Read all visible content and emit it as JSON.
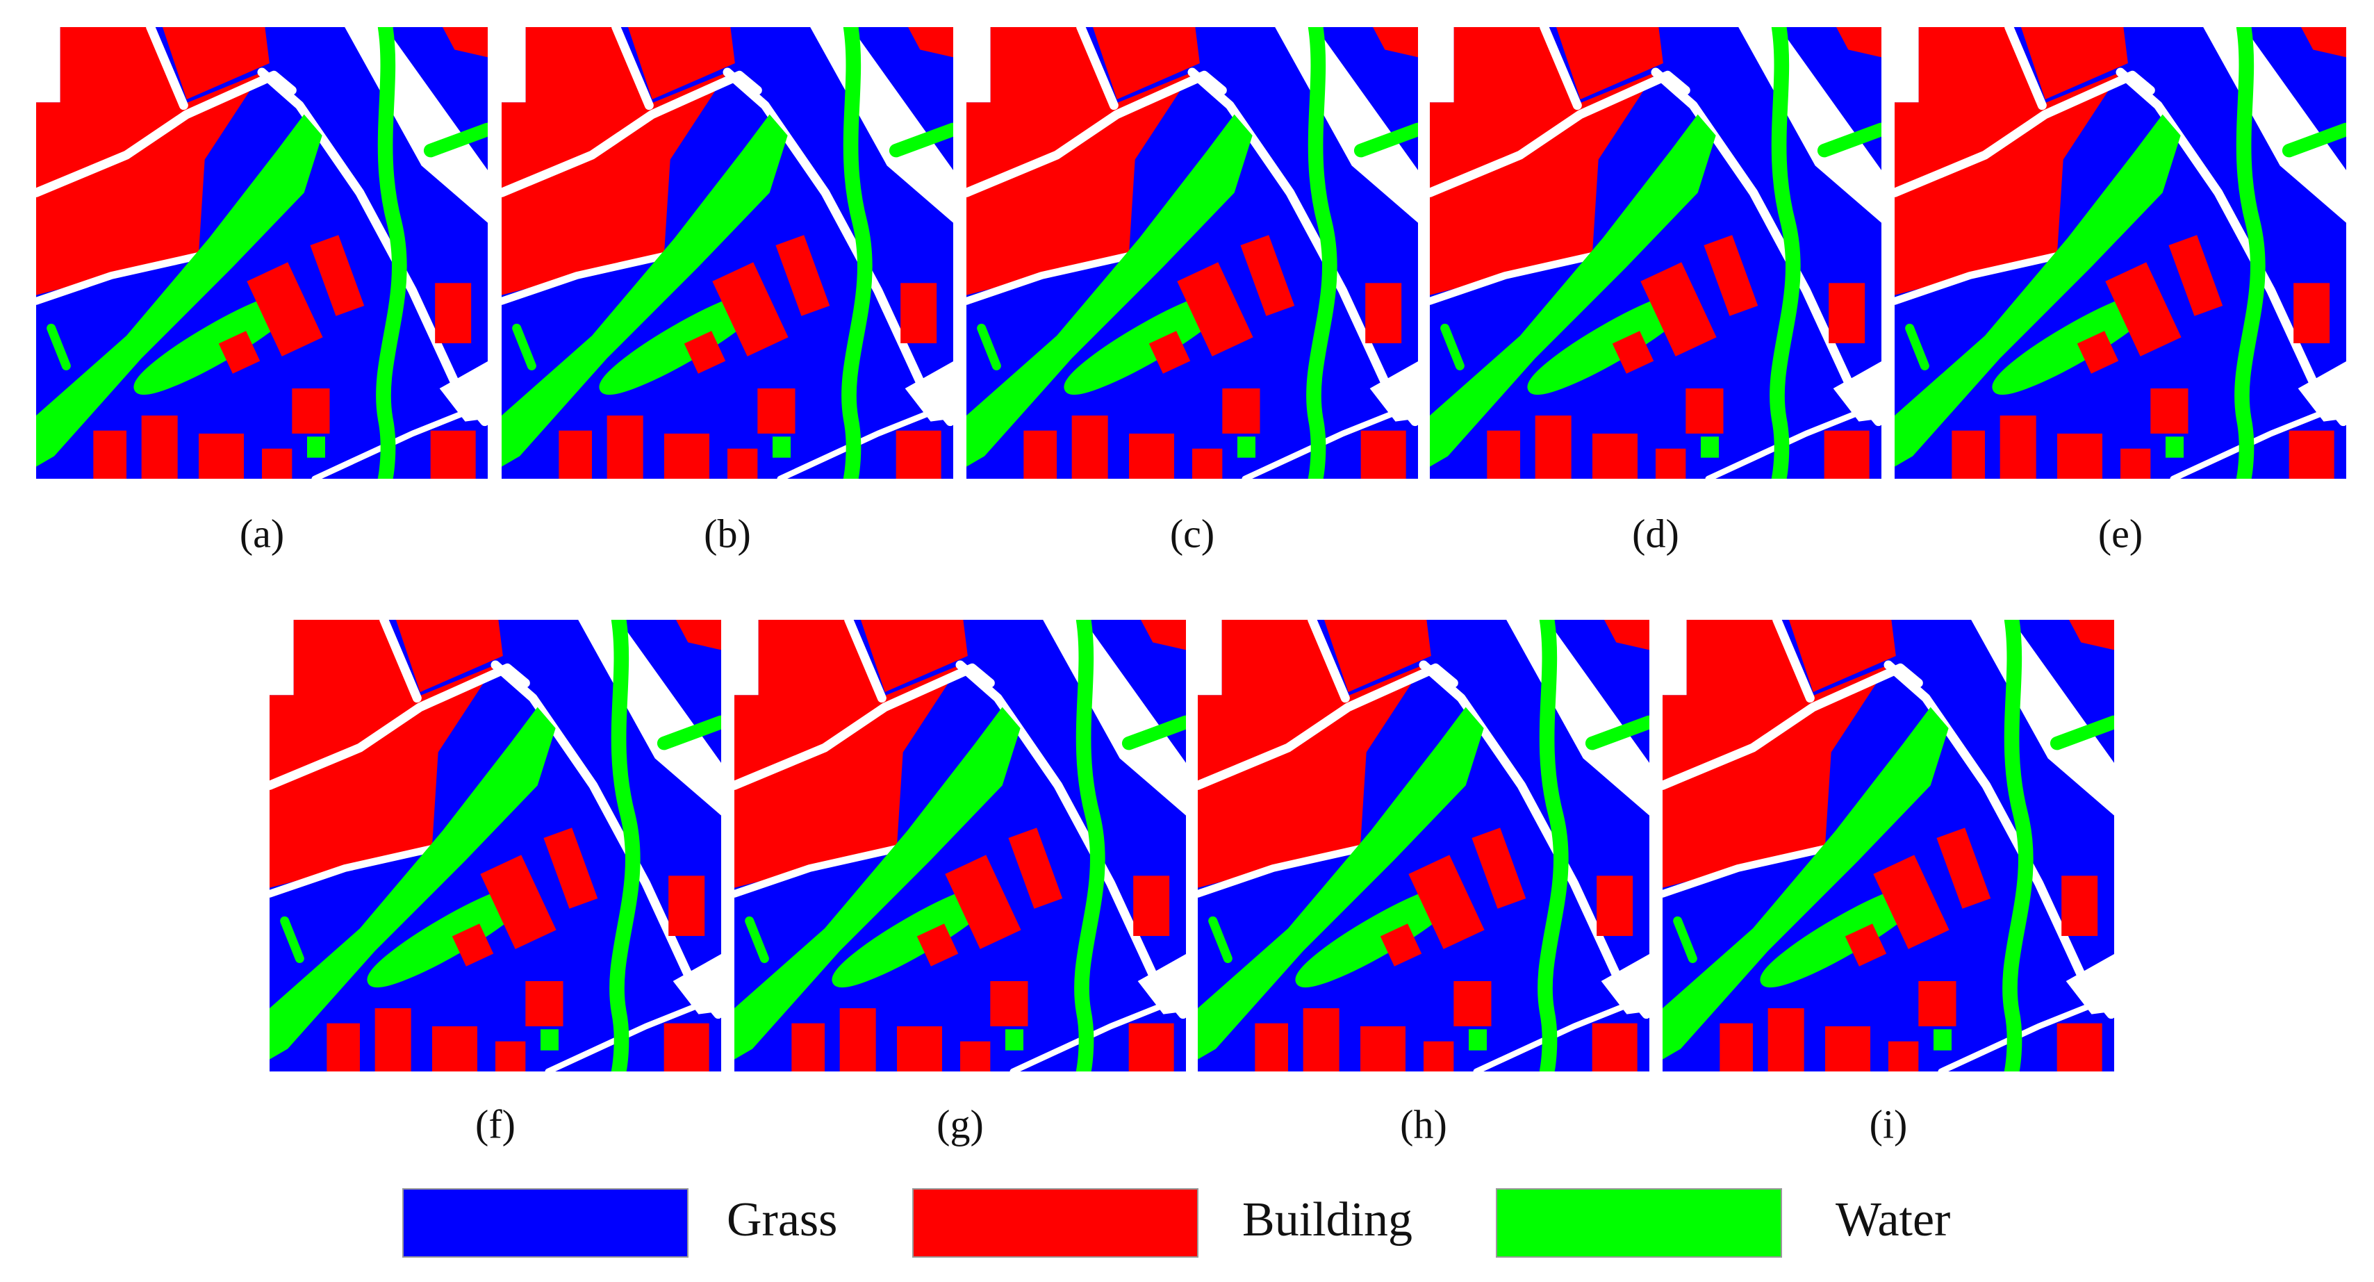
{
  "panels": [
    {
      "label": "(a)"
    },
    {
      "label": "(b)"
    },
    {
      "label": "(c)"
    },
    {
      "label": "(d)"
    },
    {
      "label": "(e)"
    },
    {
      "label": "(f)"
    },
    {
      "label": "(g)"
    },
    {
      "label": "(h)"
    },
    {
      "label": "(i)"
    }
  ],
  "legend": {
    "items": [
      {
        "label": "Grass",
        "color": "#0000ff"
      },
      {
        "label": "Building",
        "color": "#ff0000"
      },
      {
        "label": "Water",
        "color": "#00ff00"
      }
    ]
  }
}
